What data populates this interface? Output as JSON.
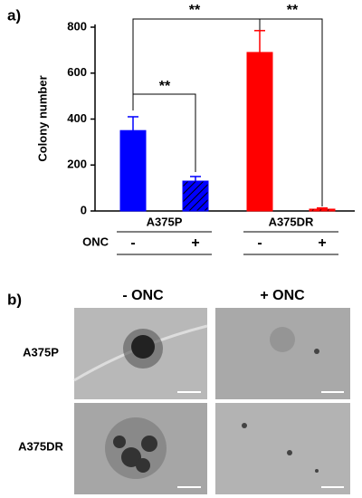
{
  "chart_data": {
    "type": "bar",
    "panel_label": "a)",
    "y_label": "Colony number",
    "categories": [
      "-",
      "+",
      "-",
      "+"
    ],
    "values": [
      350,
      130,
      690,
      8
    ],
    "errors": [
      60,
      20,
      95,
      5
    ],
    "colors": [
      "#0000ff",
      "#0000ff",
      "#ff0000",
      "#ff0000"
    ],
    "hatched": [
      false,
      true,
      false,
      true
    ],
    "groups": [
      "A375P",
      "A375DR"
    ],
    "treatment_label": "ONC",
    "annotations": [
      "**",
      "**",
      "**"
    ],
    "ylim": [
      0,
      800
    ],
    "yticks": [
      0,
      200,
      400,
      600,
      800
    ]
  },
  "panel_b": {
    "label": "b)",
    "columns": [
      "- ONC",
      "+ ONC"
    ],
    "rows": [
      "A375P",
      "A375DR"
    ]
  }
}
